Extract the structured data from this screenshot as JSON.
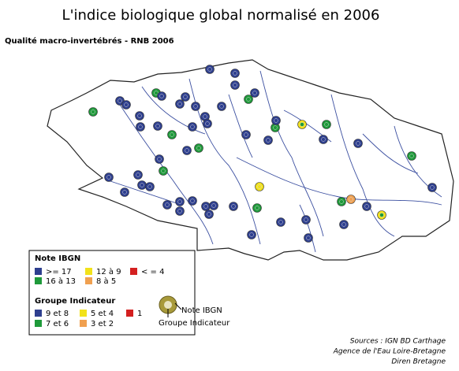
{
  "title": "L'indice biologique global normalisé en 2006",
  "subtitle": "Qualité macro-invertébrés - RNB 2006",
  "legend": {
    "note_title": "Note IBGN",
    "note_items": [
      ">= 17",
      "12 à 9",
      "< = 4",
      "16 à 13",
      "8 à 5"
    ],
    "groupe_title": "Groupe Indicateur",
    "groupe_items": [
      "9 et 8",
      "5 et 4",
      "1",
      "7 et 6",
      "3 et 2"
    ]
  },
  "callout": {
    "note": "Note IBGN",
    "groupe": "Groupe Indicateur"
  },
  "sources": [
    "Sources : IGN BD Carthage",
    "Agence de l'Eau Loire-Bretagne",
    "Diren Bretagne"
  ]
}
